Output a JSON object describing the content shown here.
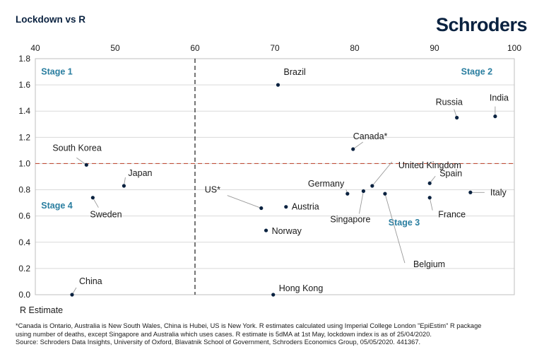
{
  "header": {
    "title": "Lockdown vs R",
    "logo": "Schroders"
  },
  "footnote": {
    "line1": "*Canada is Ontario, Australia is New South Wales, China is Hubei, US is New York. R estimates calculated using Imperial College London \"EpiEstim\" R package",
    "line2": "using number of deaths, except Singapore and Australia which uses cases. R estimate is 5dMA at 1st May, lockdown index is as of 25/04/2020.",
    "line3": "Source: Schroders Data Insights, University of Oxford, Blavatnik School of Government, Schroders Economics Group, 05/05/2020. 441367."
  },
  "colors": {
    "point": "#0a2240",
    "threshold": "#c0503a",
    "stage": "#2a7ea0",
    "grid": "#d9d9d9"
  },
  "chart_data": {
    "type": "scatter",
    "title": "Lockdown vs R",
    "xlabel": "",
    "ylabel": "R Estimate",
    "xlim": [
      40,
      100
    ],
    "ylim": [
      0,
      1.8
    ],
    "x_ticks": [
      40,
      50,
      60,
      70,
      80,
      90,
      100
    ],
    "y_ticks": [
      "0.0",
      "0.2",
      "0.4",
      "0.6",
      "0.8",
      "1.0",
      "1.2",
      "1.4",
      "1.6",
      "1.8"
    ],
    "x_axis_position": "top",
    "grid": true,
    "vertical_threshold": 60,
    "horizontal_threshold": 1.0,
    "stages": [
      {
        "label": "Stage 1",
        "x": 40.2,
        "y": 1.7
      },
      {
        "label": "Stage 2",
        "x": 92.8,
        "y": 1.7
      },
      {
        "label": "Stage 3",
        "x": 83.7,
        "y": 0.55
      },
      {
        "label": "Stage 4",
        "x": 40.2,
        "y": 0.68
      }
    ],
    "points": [
      {
        "name": "Brazil",
        "x": 70.4,
        "y": 1.6
      },
      {
        "name": "Russia",
        "x": 92.8,
        "y": 1.35
      },
      {
        "name": "India",
        "x": 97.6,
        "y": 1.36
      },
      {
        "name": "Canada*",
        "x": 79.8,
        "y": 1.11
      },
      {
        "name": "South Korea",
        "x": 46.4,
        "y": 0.99
      },
      {
        "name": "United Kingdom",
        "x": 82.2,
        "y": 0.83
      },
      {
        "name": "Japan",
        "x": 51.1,
        "y": 0.83
      },
      {
        "name": "Spain",
        "x": 89.4,
        "y": 0.85
      },
      {
        "name": "Germany",
        "x": 79.1,
        "y": 0.77
      },
      {
        "name": "Singapore",
        "x": 81.1,
        "y": 0.79
      },
      {
        "name": "Sweden",
        "x": 47.2,
        "y": 0.74
      },
      {
        "name": "Belgium",
        "x": 83.8,
        "y": 0.77
      },
      {
        "name": "Italy",
        "x": 94.5,
        "y": 0.78
      },
      {
        "name": "France",
        "x": 89.4,
        "y": 0.74
      },
      {
        "name": "US*",
        "x": 68.3,
        "y": 0.66
      },
      {
        "name": "Austria",
        "x": 71.4,
        "y": 0.67
      },
      {
        "name": "Norway",
        "x": 68.9,
        "y": 0.49
      },
      {
        "name": "China",
        "x": 44.6,
        "y": 0.0
      },
      {
        "name": "Hong Kong",
        "x": 69.8,
        "y": 0.0
      }
    ]
  }
}
